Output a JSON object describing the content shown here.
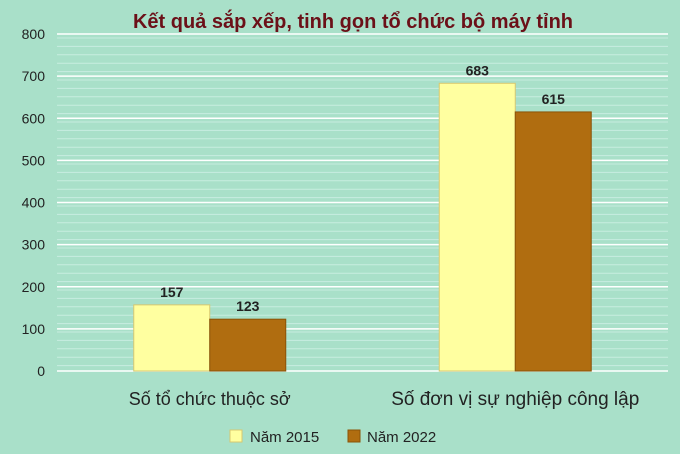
{
  "chart_data": {
    "type": "bar",
    "title": "Kết quả sắp xếp, tinh gọn tổ chức bộ máy tỉnh",
    "categories": [
      "Số tổ chức thuộc sở",
      "Số đơn vị sự nghiệp công lập"
    ],
    "series": [
      {
        "name": "Năm 2015",
        "values": [
          157,
          683
        ],
        "color": "#ffffa0"
      },
      {
        "name": "Năm 2022",
        "values": [
          123,
          615
        ],
        "color": "#b06d10"
      }
    ],
    "ylim": [
      0,
      800
    ],
    "yticks": [
      0,
      100,
      200,
      300,
      400,
      500,
      600,
      700,
      800
    ],
    "grid": true,
    "legend": "bottom",
    "colors": {
      "title": "#6b1018",
      "background": "#a9e0c9",
      "grid": "#ffffff"
    }
  }
}
